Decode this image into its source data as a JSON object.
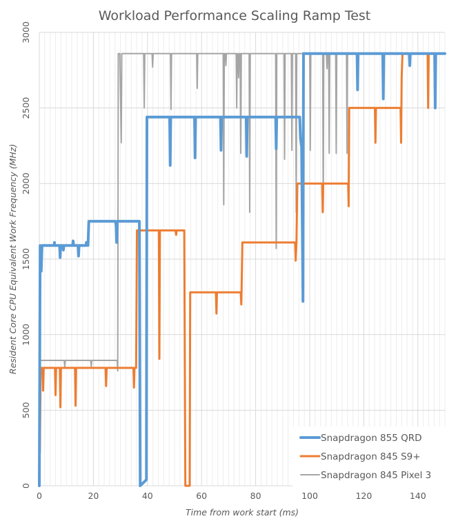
{
  "chart_data": {
    "type": "line",
    "title": "Workload Performance Scaling Ramp Test",
    "xlabel": "Time from work start (ms)",
    "ylabel": "Resident Core CPU Equivalent Work Frequency (MHz)",
    "xlim": [
      0,
      150
    ],
    "ylim": [
      0,
      3000
    ],
    "x_ticks": [
      0,
      20,
      40,
      60,
      80,
      100,
      120,
      140
    ],
    "y_ticks": [
      0,
      500,
      1000,
      1500,
      2000,
      2500,
      3000
    ],
    "x_tick_labels": [
      "0",
      "20",
      "40",
      "60",
      "80",
      "100",
      "120",
      "140"
    ],
    "y_tick_labels": [
      "0",
      "500",
      "1000",
      "1500",
      "2000",
      "2500",
      "3000"
    ],
    "grid": true,
    "legend_position": "bottom-right",
    "series": [
      {
        "name": "Snapdragon 855 QRD",
        "color": "#5B9BD5",
        "points": [
          [
            0,
            0
          ],
          [
            0.3,
            1590
          ],
          [
            0.7,
            1420
          ],
          [
            1,
            1590
          ],
          [
            5.5,
            1590
          ],
          [
            5.6,
            1610
          ],
          [
            5.7,
            1590
          ],
          [
            7.5,
            1590
          ],
          [
            7.7,
            1510
          ],
          [
            7.9,
            1590
          ],
          [
            8.7,
            1590
          ],
          [
            8.9,
            1560
          ],
          [
            9.1,
            1590
          ],
          [
            12.3,
            1590
          ],
          [
            12.5,
            1620
          ],
          [
            12.7,
            1590
          ],
          [
            14.3,
            1590
          ],
          [
            14.5,
            1520
          ],
          [
            14.7,
            1590
          ],
          [
            17.3,
            1590
          ],
          [
            17.4,
            1610
          ],
          [
            18,
            1590
          ],
          [
            18.3,
            1750
          ],
          [
            28.2,
            1750
          ],
          [
            28.4,
            1720
          ],
          [
            28.6,
            1610
          ],
          [
            28.8,
            1750
          ],
          [
            37,
            1750
          ],
          [
            37.3,
            0
          ],
          [
            39.6,
            40
          ],
          [
            39.8,
            2440
          ],
          [
            48.2,
            2440
          ],
          [
            48.4,
            2120
          ],
          [
            48.6,
            2440
          ],
          [
            57.4,
            2440
          ],
          [
            57.6,
            2170
          ],
          [
            57.8,
            2440
          ],
          [
            67,
            2440
          ],
          [
            67.2,
            2220
          ],
          [
            67.4,
            2440
          ],
          [
            76.5,
            2440
          ],
          [
            76.7,
            2180
          ],
          [
            76.9,
            2440
          ],
          [
            87.4,
            2440
          ],
          [
            87.6,
            2230
          ],
          [
            87.8,
            2440
          ],
          [
            96.3,
            2440
          ],
          [
            96.6,
            2300
          ],
          [
            97,
            2240
          ],
          [
            97.5,
            1220
          ],
          [
            97.7,
            2860
          ],
          [
            117.5,
            2860
          ],
          [
            117.7,
            2620
          ],
          [
            117.9,
            2860
          ],
          [
            127,
            2860
          ],
          [
            127.2,
            2560
          ],
          [
            127.4,
            2860
          ],
          [
            136.8,
            2860
          ],
          [
            137,
            2780
          ],
          [
            137.2,
            2860
          ],
          [
            146.2,
            2860
          ],
          [
            146.4,
            2500
          ],
          [
            146.6,
            2860
          ],
          [
            150,
            2860
          ]
        ]
      },
      {
        "name": "Snapdragon 845 S9+",
        "color": "#ED7D31",
        "points": [
          [
            0,
            330
          ],
          [
            0.2,
            220
          ],
          [
            0.5,
            780
          ],
          [
            1.2,
            780
          ],
          [
            1.4,
            630
          ],
          [
            1.6,
            780
          ],
          [
            5.8,
            780
          ],
          [
            6,
            600
          ],
          [
            6.2,
            780
          ],
          [
            7.6,
            780
          ],
          [
            7.8,
            520
          ],
          [
            8,
            780
          ],
          [
            13.2,
            780
          ],
          [
            13.4,
            530
          ],
          [
            13.6,
            780
          ],
          [
            24.5,
            780
          ],
          [
            24.7,
            660
          ],
          [
            24.9,
            780
          ],
          [
            34.8,
            780
          ],
          [
            35,
            650
          ],
          [
            35.2,
            780
          ],
          [
            35.8,
            780
          ],
          [
            36.1,
            1690
          ],
          [
            44.2,
            1690
          ],
          [
            44.4,
            840
          ],
          [
            44.6,
            1690
          ],
          [
            50.4,
            1690
          ],
          [
            50.6,
            1660
          ],
          [
            50.8,
            1690
          ],
          [
            53.6,
            1690
          ],
          [
            54,
            0
          ],
          [
            55.6,
            0
          ],
          [
            55.8,
            1280
          ],
          [
            65.3,
            1280
          ],
          [
            65.5,
            1140
          ],
          [
            65.7,
            1280
          ],
          [
            74.5,
            1280
          ],
          [
            74.7,
            1200
          ],
          [
            75.1,
            1610
          ],
          [
            94.6,
            1610
          ],
          [
            94.8,
            1490
          ],
          [
            95.1,
            1610
          ],
          [
            95.4,
            2000
          ],
          [
            104.6,
            2000
          ],
          [
            104.8,
            1810
          ],
          [
            105,
            2000
          ],
          [
            114.2,
            2000
          ],
          [
            114.4,
            1850
          ],
          [
            114.6,
            2500
          ],
          [
            124.1,
            2500
          ],
          [
            124.3,
            2270
          ],
          [
            124.5,
            2500
          ],
          [
            133.6,
            2500
          ],
          [
            133.8,
            2270
          ],
          [
            134,
            2700
          ],
          [
            134.3,
            2860
          ],
          [
            143.6,
            2860
          ],
          [
            143.8,
            2500
          ],
          [
            144,
            2860
          ],
          [
            150,
            2860
          ]
        ]
      },
      {
        "name": "Snapdragon 845 Pixel 3",
        "color": "#A5A5A5",
        "points": [
          [
            0,
            830
          ],
          [
            9.2,
            830
          ],
          [
            9.4,
            790
          ],
          [
            9.6,
            830
          ],
          [
            19,
            830
          ],
          [
            19.2,
            790
          ],
          [
            19.4,
            830
          ],
          [
            28.8,
            830
          ],
          [
            29,
            760
          ],
          [
            29.2,
            2860
          ],
          [
            29.8,
            2860
          ],
          [
            30,
            2600
          ],
          [
            30.3,
            2270
          ],
          [
            30.5,
            2860
          ],
          [
            38.6,
            2860
          ],
          [
            38.8,
            2500
          ],
          [
            39,
            2860
          ],
          [
            41.7,
            2860
          ],
          [
            41.9,
            2770
          ],
          [
            42.1,
            2860
          ],
          [
            48.5,
            2860
          ],
          [
            48.7,
            2490
          ],
          [
            48.9,
            2860
          ],
          [
            58.2,
            2860
          ],
          [
            58.4,
            2630
          ],
          [
            58.6,
            2860
          ],
          [
            68,
            2860
          ],
          [
            68.2,
            1860
          ],
          [
            68.4,
            2860
          ],
          [
            68.8,
            2860
          ],
          [
            69,
            2780
          ],
          [
            69.2,
            2860
          ],
          [
            72.8,
            2860
          ],
          [
            73,
            2500
          ],
          [
            73.2,
            2860
          ],
          [
            73.5,
            2860
          ],
          [
            73.7,
            2700
          ],
          [
            74,
            2860
          ],
          [
            74.3,
            2860
          ],
          [
            74.5,
            2200
          ],
          [
            74.7,
            2860
          ],
          [
            77.6,
            2860
          ],
          [
            77.8,
            1810
          ],
          [
            78,
            2860
          ],
          [
            87.4,
            2860
          ],
          [
            87.6,
            1570
          ],
          [
            87.8,
            2860
          ],
          [
            90.5,
            2860
          ],
          [
            90.7,
            2160
          ],
          [
            90.9,
            2860
          ],
          [
            93.2,
            2860
          ],
          [
            93.4,
            2220
          ],
          [
            93.6,
            2860
          ],
          [
            94.8,
            2860
          ],
          [
            95,
            1810
          ],
          [
            95.2,
            2860
          ],
          [
            97.4,
            2860
          ],
          [
            97.6,
            2860
          ],
          [
            100,
            2860
          ],
          [
            100.2,
            2220
          ],
          [
            100.4,
            2860
          ],
          [
            104.8,
            2860
          ],
          [
            105,
            1820
          ],
          [
            105.2,
            2860
          ],
          [
            106.2,
            2860
          ],
          [
            106.4,
            2760
          ],
          [
            106.6,
            2860
          ],
          [
            107,
            2860
          ],
          [
            107.2,
            2200
          ],
          [
            107.4,
            2860
          ],
          [
            109.6,
            2860
          ],
          [
            109.8,
            2200
          ],
          [
            110,
            2860
          ],
          [
            113.6,
            2860
          ],
          [
            113.8,
            2200
          ],
          [
            114,
            2860
          ],
          [
            150,
            2860
          ]
        ]
      }
    ]
  }
}
